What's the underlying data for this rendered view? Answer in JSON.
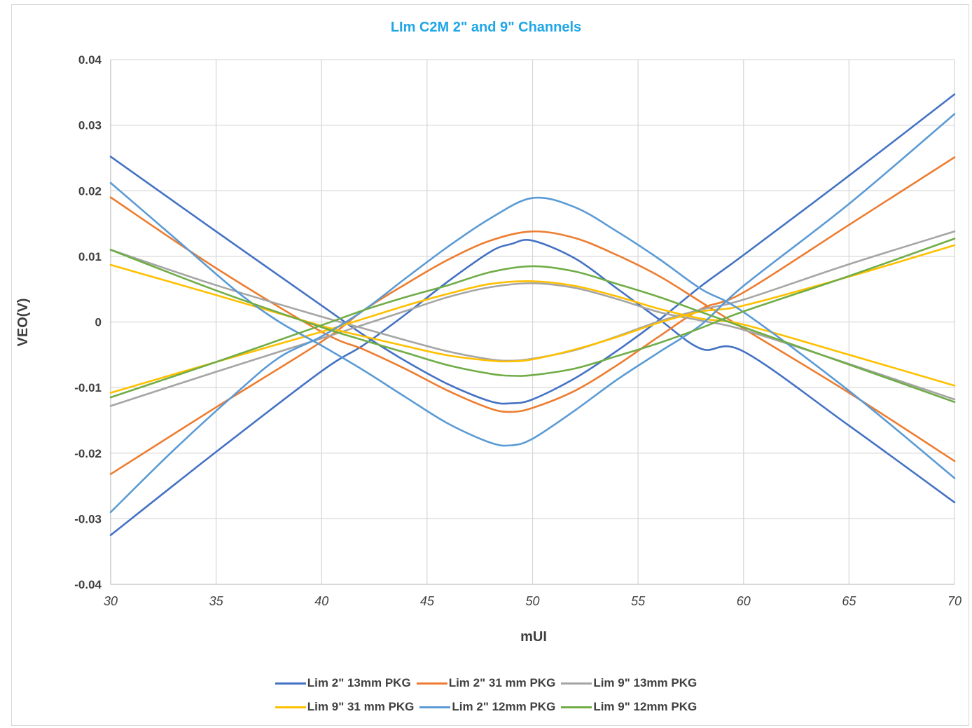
{
  "chart_data": {
    "type": "line",
    "title": "LIm C2M 2\" and 9\" Channels",
    "xlabel": "mUI",
    "ylabel": "VEO(V)",
    "xlim": [
      30,
      70
    ],
    "ylim": [
      -0.04,
      0.04
    ],
    "x_ticks": [
      "30",
      "35",
      "40",
      "45",
      "50",
      "55",
      "60",
      "65",
      "70"
    ],
    "y_ticks": [
      "0.04",
      "0.03",
      "0.02",
      "0.01",
      "0",
      "-0.01",
      "-0.02",
      "-0.03",
      "-0.04"
    ],
    "grid": true,
    "legend_position": "bottom",
    "series": [
      {
        "name": "Lim 2\" 13mm PKG",
        "color": "#4472c4",
        "upper": [
          [
            30,
            0.0252
          ],
          [
            35,
            0.0138
          ],
          [
            40,
            0.0025
          ],
          [
            42,
            -0.002
          ],
          [
            44,
            -0.006
          ],
          [
            46,
            -0.0095
          ],
          [
            48,
            -0.0121
          ],
          [
            49,
            -0.0124
          ],
          [
            50,
            -0.0118
          ],
          [
            52,
            -0.0086
          ],
          [
            54,
            -0.0044
          ],
          [
            56,
            0.0003
          ],
          [
            58,
            0.0055
          ],
          [
            60,
            0.0102
          ],
          [
            65,
            0.0223
          ],
          [
            70,
            0.0347
          ]
        ],
        "lower": [
          [
            30,
            -0.0325
          ],
          [
            35,
            -0.0198
          ],
          [
            40,
            -0.0075
          ],
          [
            42,
            -0.0035
          ],
          [
            44,
            0.0012
          ],
          [
            46,
            0.0062
          ],
          [
            48,
            0.0107
          ],
          [
            49,
            0.0119
          ],
          [
            50,
            0.0124
          ],
          [
            52,
            0.0097
          ],
          [
            54,
            0.0051
          ],
          [
            56,
            0.0004
          ],
          [
            58,
            -0.0041
          ],
          [
            60,
            -0.0045
          ],
          [
            65,
            -0.0158
          ],
          [
            70,
            -0.0275
          ]
        ]
      },
      {
        "name": "Lim 2\" 31 mm PKG",
        "color": "#ed7d31",
        "upper": [
          [
            30,
            0.019
          ],
          [
            35,
            0.0082
          ],
          [
            40,
            -0.0015
          ],
          [
            42,
            -0.0042
          ],
          [
            44,
            -0.0072
          ],
          [
            46,
            -0.0105
          ],
          [
            48,
            -0.0132
          ],
          [
            49,
            -0.0137
          ],
          [
            50,
            -0.0131
          ],
          [
            52,
            -0.0105
          ],
          [
            54,
            -0.0066
          ],
          [
            56,
            -0.0022
          ],
          [
            58,
            0.002
          ],
          [
            60,
            0.0045
          ],
          [
            65,
            0.0148
          ],
          [
            70,
            0.0251
          ]
        ],
        "lower": [
          [
            30,
            -0.0232
          ],
          [
            35,
            -0.013
          ],
          [
            40,
            -0.003
          ],
          [
            42,
            0.0018
          ],
          [
            44,
            0.0058
          ],
          [
            46,
            0.0095
          ],
          [
            48,
            0.0124
          ],
          [
            50,
            0.0138
          ],
          [
            52,
            0.0128
          ],
          [
            54,
            0.0102
          ],
          [
            56,
            0.007
          ],
          [
            58,
            0.003
          ],
          [
            60,
            -0.001
          ],
          [
            65,
            -0.0108
          ],
          [
            70,
            -0.0212
          ]
        ]
      },
      {
        "name": "Lim 9\" 13mm PKG",
        "color": "#a5a5a5",
        "upper": [
          [
            30,
            0.011
          ],
          [
            35,
            0.0056
          ],
          [
            40,
            0.0008
          ],
          [
            42,
            -0.001
          ],
          [
            44,
            -0.0028
          ],
          [
            46,
            -0.0045
          ],
          [
            48,
            -0.0057
          ],
          [
            49,
            -0.0059
          ],
          [
            50,
            -0.0056
          ],
          [
            52,
            -0.0043
          ],
          [
            54,
            -0.0022
          ],
          [
            56,
            0.0001
          ],
          [
            58,
            0.0019
          ],
          [
            60,
            0.0034
          ],
          [
            65,
            0.0088
          ],
          [
            70,
            0.0138
          ]
        ],
        "lower": [
          [
            30,
            -0.0128
          ],
          [
            35,
            -0.0076
          ],
          [
            40,
            -0.0025
          ],
          [
            42,
            -0.0004
          ],
          [
            44,
            0.0017
          ],
          [
            46,
            0.0038
          ],
          [
            48,
            0.0053
          ],
          [
            50,
            0.0059
          ],
          [
            52,
            0.0052
          ],
          [
            54,
            0.0035
          ],
          [
            56,
            0.0015
          ],
          [
            58,
            0.0002
          ],
          [
            60,
            -0.0012
          ],
          [
            65,
            -0.0064
          ],
          [
            70,
            -0.0118
          ]
        ]
      },
      {
        "name": "Lim 9\" 31 mm PKG",
        "color": "#ffc000",
        "upper": [
          [
            30,
            0.0087
          ],
          [
            35,
            0.0041
          ],
          [
            40,
            -0.0006
          ],
          [
            42,
            -0.0022
          ],
          [
            44,
            -0.0037
          ],
          [
            46,
            -0.0051
          ],
          [
            48,
            -0.0059
          ],
          [
            49,
            -0.006
          ],
          [
            50,
            -0.0057
          ],
          [
            52,
            -0.0042
          ],
          [
            54,
            -0.0023
          ],
          [
            56,
            -0.0001
          ],
          [
            58,
            0.0016
          ],
          [
            60,
            0.0025
          ],
          [
            65,
            0.0069
          ],
          [
            70,
            0.0117
          ]
        ],
        "lower": [
          [
            30,
            -0.0108
          ],
          [
            35,
            -0.0061
          ],
          [
            40,
            -0.0015
          ],
          [
            42,
            0.0005
          ],
          [
            44,
            0.0025
          ],
          [
            46,
            0.0043
          ],
          [
            48,
            0.0058
          ],
          [
            50,
            0.0062
          ],
          [
            52,
            0.0055
          ],
          [
            54,
            0.0039
          ],
          [
            56,
            0.002
          ],
          [
            58,
            0.0005
          ],
          [
            60,
            -0.0004
          ],
          [
            65,
            -0.005
          ],
          [
            70,
            -0.0097
          ]
        ]
      },
      {
        "name": "Lim 2\" 12mm PKG",
        "color": "#5b9bd5",
        "upper": [
          [
            30,
            0.0212
          ],
          [
            33,
            0.0129
          ],
          [
            36,
            0.0046
          ],
          [
            38,
            0
          ],
          [
            40,
            -0.0036
          ],
          [
            42,
            -0.0074
          ],
          [
            44,
            -0.0115
          ],
          [
            46,
            -0.0155
          ],
          [
            48,
            -0.0184
          ],
          [
            49,
            -0.0188
          ],
          [
            50,
            -0.0178
          ],
          [
            52,
            -0.0135
          ],
          [
            54,
            -0.0088
          ],
          [
            56,
            -0.0046
          ],
          [
            58,
            -0.0004
          ],
          [
            60,
            0.0055
          ],
          [
            65,
            0.018
          ],
          [
            70,
            0.0317
          ]
        ],
        "lower": [
          [
            30,
            -0.029
          ],
          [
            33,
            -0.0195
          ],
          [
            36,
            -0.0107
          ],
          [
            38,
            -0.0054
          ],
          [
            40,
            -0.0022
          ],
          [
            42,
            0.0018
          ],
          [
            44,
            0.0067
          ],
          [
            46,
            0.0115
          ],
          [
            48,
            0.0158
          ],
          [
            50,
            0.0189
          ],
          [
            52,
            0.0175
          ],
          [
            54,
            0.0138
          ],
          [
            56,
            0.0096
          ],
          [
            58,
            0.005
          ],
          [
            60,
            0.0015
          ],
          [
            65,
            -0.0105
          ],
          [
            70,
            -0.0238
          ]
        ]
      },
      {
        "name": "Lim 9\" 12mm PKG",
        "color": "#70ad47",
        "upper": [
          [
            30,
            0.011
          ],
          [
            35,
            0.0048
          ],
          [
            40,
            -0.0008
          ],
          [
            42,
            -0.0028
          ],
          [
            44,
            -0.0047
          ],
          [
            46,
            -0.0066
          ],
          [
            48,
            -0.0079
          ],
          [
            49,
            -0.0082
          ],
          [
            50,
            -0.0081
          ],
          [
            52,
            -0.0071
          ],
          [
            54,
            -0.0052
          ],
          [
            56,
            -0.0032
          ],
          [
            58,
            -0.0009
          ],
          [
            60,
            0.0016
          ],
          [
            65,
            0.007
          ],
          [
            70,
            0.0127
          ]
        ],
        "lower": [
          [
            30,
            -0.0115
          ],
          [
            35,
            -0.0061
          ],
          [
            40,
            -0.0005
          ],
          [
            42,
            0.0018
          ],
          [
            44,
            0.0038
          ],
          [
            46,
            0.0056
          ],
          [
            48,
            0.0076
          ],
          [
            50,
            0.0085
          ],
          [
            52,
            0.0077
          ],
          [
            54,
            0.0058
          ],
          [
            56,
            0.0038
          ],
          [
            58,
            0.0015
          ],
          [
            60,
            -0.0008
          ],
          [
            65,
            -0.0065
          ],
          [
            70,
            -0.0122
          ]
        ]
      }
    ]
  }
}
